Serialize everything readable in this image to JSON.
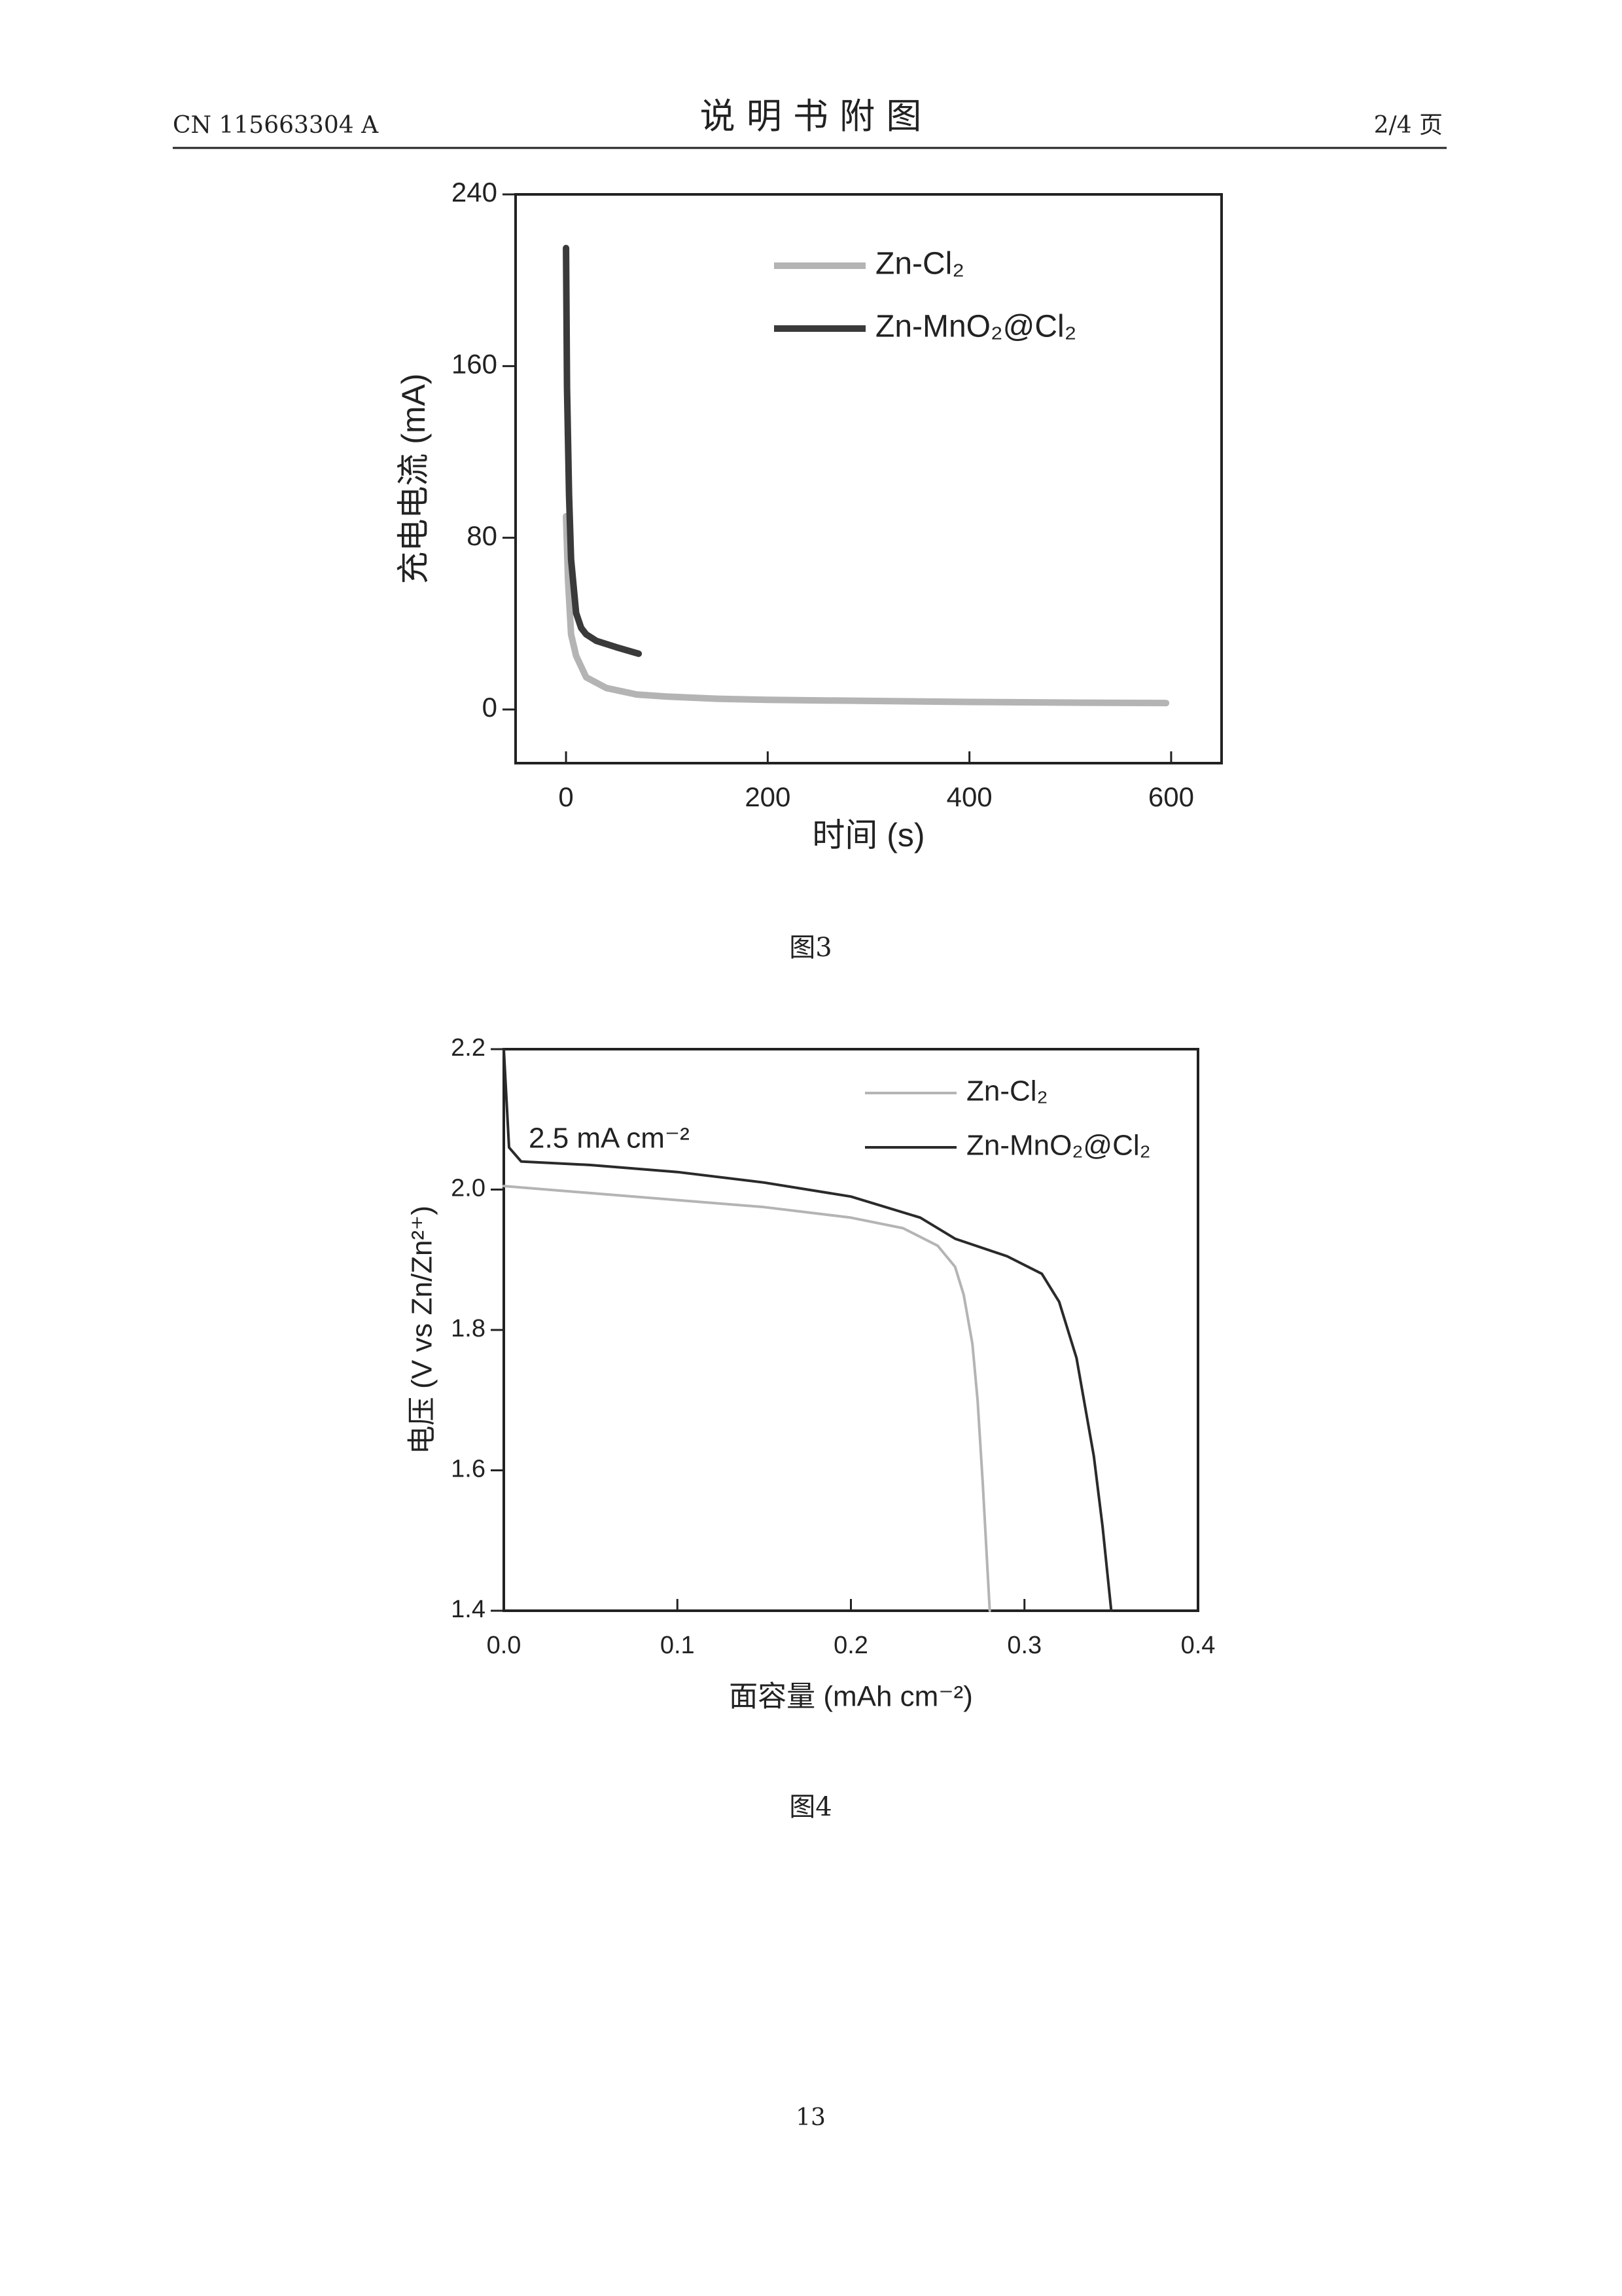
{
  "header": {
    "left": "CN 115663304 A",
    "title": "说 明 书 附 图",
    "right": "2/4 页"
  },
  "chart_data": [
    {
      "type": "line",
      "xlabel": "时间 (s)",
      "ylabel": "充电电流 (mA)",
      "xlim": [
        -50,
        650
      ],
      "ylim": [
        -25,
        240
      ],
      "xticks": [
        0,
        200,
        400,
        600
      ],
      "yticks": [
        0,
        80,
        160,
        240
      ],
      "series": [
        {
          "name": "Zn-Cl₂",
          "color": "#b4b4b4",
          "x": [
            0,
            2,
            5,
            10,
            20,
            40,
            70,
            100,
            150,
            200,
            300,
            400,
            500,
            595
          ],
          "values": [
            90,
            60,
            35,
            25,
            15,
            10,
            7,
            6,
            5,
            4.5,
            4,
            3.5,
            3.2,
            3
          ]
        },
        {
          "name": "Zn-MnO₂@Cl₂",
          "color": "#3a3a3a",
          "x": [
            0,
            1,
            3,
            5,
            10,
            15,
            20,
            30,
            50,
            72
          ],
          "values": [
            215,
            150,
            100,
            70,
            45,
            38,
            35,
            32,
            29,
            26
          ]
        }
      ]
    },
    {
      "type": "line",
      "xlabel": "面容量 (mAh cm⁻²)",
      "ylabel": "电压 (V vs Zn/Zn²⁺)",
      "annotation": "2.5 mA cm⁻²",
      "xlim": [
        0,
        0.4
      ],
      "ylim": [
        1.4,
        2.2
      ],
      "xticks": [
        {
          "value": 0,
          "label": "0.0"
        },
        0.1,
        0.2,
        0.3,
        0.4
      ],
      "yticks": [
        1.4,
        1.6,
        1.8,
        {
          "value": 2,
          "label": "2.0"
        },
        2.2
      ],
      "series": [
        {
          "name": "Zn-Cl₂",
          "color": "#b4b4b4",
          "x": [
            0,
            0.05,
            0.1,
            0.15,
            0.2,
            0.23,
            0.25,
            0.26,
            0.265,
            0.27,
            0.273,
            0.276,
            0.28
          ],
          "values": [
            2.005,
            1.995,
            1.985,
            1.975,
            1.96,
            1.945,
            1.92,
            1.89,
            1.85,
            1.78,
            1.7,
            1.58,
            1.4
          ]
        },
        {
          "name": "Zn-MnO₂@Cl₂",
          "color": "#2a2a2a",
          "x": [
            0,
            0.003,
            0.01,
            0.05,
            0.1,
            0.15,
            0.2,
            0.24,
            0.26,
            0.29,
            0.31,
            0.32,
            0.33,
            0.34,
            0.345,
            0.35
          ],
          "values": [
            2.2,
            2.06,
            2.04,
            2.035,
            2.025,
            2.01,
            1.99,
            1.96,
            1.93,
            1.905,
            1.88,
            1.84,
            1.76,
            1.62,
            1.52,
            1.4
          ]
        }
      ]
    }
  ],
  "captions": [
    "图3",
    "图4"
  ],
  "page_number": "13"
}
